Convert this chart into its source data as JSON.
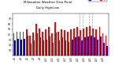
{
  "title": "Milwaukee Weather Dew Point",
  "subtitle": "Daily High/Low",
  "bar_color_high": "#ff0000",
  "bar_color_low": "#0000cc",
  "background_color": "#ffffff",
  "ylim": [
    0,
    80
  ],
  "yticks": [
    10,
    20,
    30,
    40,
    50,
    60,
    70
  ],
  "high_values": [
    42,
    46,
    46,
    46,
    50,
    38,
    44,
    60,
    52,
    46,
    50,
    54,
    42,
    64,
    46,
    50,
    48,
    46,
    50,
    52,
    54,
    48,
    52,
    54,
    56,
    52,
    50,
    54,
    42,
    38
  ],
  "low_values": [
    28,
    32,
    30,
    32,
    38,
    22,
    28,
    42,
    34,
    28,
    30,
    36,
    24,
    44,
    28,
    34,
    28,
    26,
    30,
    34,
    36,
    28,
    34,
    36,
    38,
    34,
    30,
    36,
    24,
    18
  ],
  "xlabels": [
    "4/1",
    "",
    "4/3",
    "",
    "4/5",
    "",
    "4/7",
    "",
    "4/9",
    "",
    "4/11",
    "",
    "4/13",
    "",
    "4/15",
    "",
    "4/17",
    "",
    "4/19",
    "",
    "4/21",
    "",
    "4/23",
    "",
    "4/25",
    "",
    "4/27",
    "",
    "4/29",
    ""
  ],
  "vline_positions": [
    20.5,
    21.5,
    23.5,
    24.5
  ],
  "legend_labels": [
    "Low",
    "High"
  ]
}
